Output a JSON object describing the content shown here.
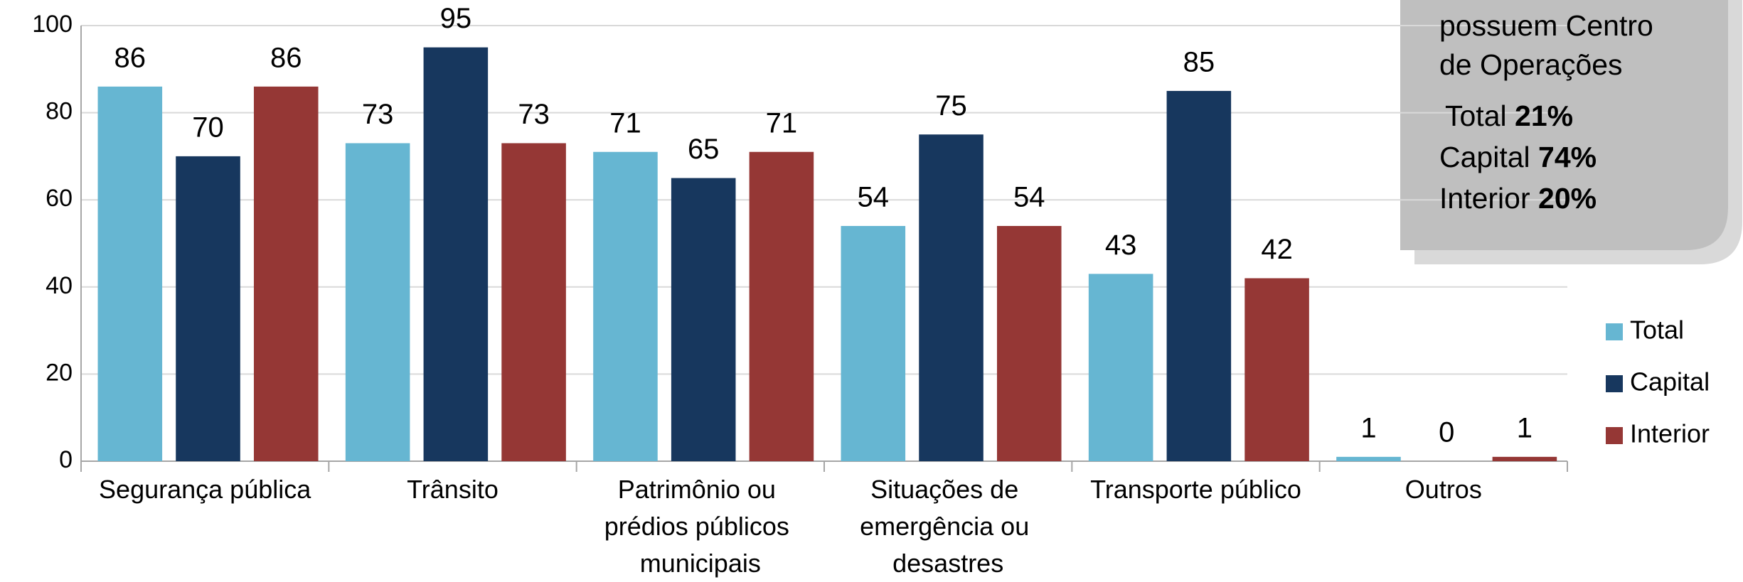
{
  "chart_data": {
    "type": "bar",
    "categories": [
      "Segurança pública",
      "Trânsito",
      "Patrimônio ou prédios públicos municipais",
      "Situações de emergência ou desastres",
      "Transporte público",
      "Outros"
    ],
    "series": [
      {
        "name": "Total",
        "color": "#66b6d2",
        "values": [
          86,
          73,
          71,
          54,
          43,
          1
        ]
      },
      {
        "name": "Capital",
        "color": "#17375e",
        "values": [
          70,
          95,
          65,
          75,
          85,
          0
        ]
      },
      {
        "name": "Interior",
        "color": "#953735",
        "values": [
          86,
          73,
          71,
          54,
          42,
          1
        ]
      }
    ],
    "ylim": [
      0,
      100
    ],
    "yticks": [
      0,
      20,
      40,
      60,
      80,
      100
    ],
    "grid": true,
    "legend": "right",
    "annotation": {
      "lines": [
        "possuem Centro",
        "de Operações"
      ],
      "stats": [
        {
          "label": "Total",
          "value": "21%"
        },
        {
          "label": "Capital",
          "value": "74%"
        },
        {
          "label": "Interior",
          "value": "20%"
        }
      ]
    }
  }
}
